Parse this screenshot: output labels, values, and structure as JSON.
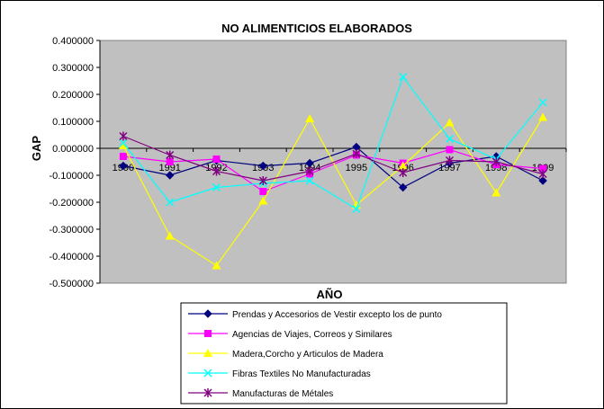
{
  "chart_data": {
    "type": "line",
    "title": "NO ALIMENTICIOS ELABORADOS",
    "xlabel": "AÑO",
    "ylabel": "GAP",
    "categories": [
      "1990",
      "1991",
      "1992",
      "1993",
      "1994",
      "1995",
      "1996",
      "1997",
      "1998",
      "1999"
    ],
    "ylim": [
      -0.5,
      0.4
    ],
    "yticks": [
      "0.400000",
      "0.300000",
      "0.200000",
      "0.100000",
      "0.000000",
      "-0.100000",
      "-0.200000",
      "-0.300000",
      "-0.400000",
      "-0.500000"
    ],
    "grid": false,
    "plot_background": "#c0c0c0",
    "legend_position": "bottom",
    "series": [
      {
        "name": "Prendas y Accesorios de Vestir excepto los de punto",
        "color": "#000080",
        "marker": "diamond",
        "values": [
          -0.065,
          -0.1,
          -0.045,
          -0.065,
          -0.055,
          0.005,
          -0.145,
          -0.055,
          -0.03,
          -0.12
        ]
      },
      {
        "name": "Agencias de Viajes, Correos y Similares",
        "color": "#ff00ff",
        "marker": "square",
        "values": [
          -0.03,
          -0.05,
          -0.04,
          -0.16,
          -0.095,
          -0.025,
          -0.055,
          -0.005,
          -0.06,
          -0.075
        ]
      },
      {
        "name": "Madera,Corcho y  Articulos de Madera",
        "color": "#ffff00",
        "marker": "triangle",
        "values": [
          0.01,
          -0.325,
          -0.435,
          -0.195,
          0.11,
          -0.21,
          -0.065,
          0.095,
          -0.165,
          0.115
        ]
      },
      {
        "name": "Fibras Textiles No Manufacturadas",
        "color": "#00ffff",
        "marker": "x",
        "values": [
          0.02,
          -0.2,
          -0.145,
          -0.13,
          -0.12,
          -0.225,
          0.265,
          0.035,
          -0.04,
          0.17
        ]
      },
      {
        "name": "Manufacturas de Métales",
        "color": "#800080",
        "marker": "star",
        "values": [
          0.045,
          -0.025,
          -0.085,
          -0.12,
          -0.085,
          -0.02,
          -0.09,
          -0.045,
          -0.05,
          -0.095
        ]
      }
    ]
  }
}
